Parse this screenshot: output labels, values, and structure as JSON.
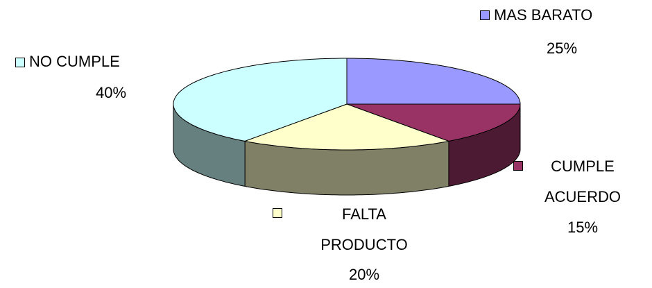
{
  "chart_data": {
    "type": "pie3d",
    "categories": [
      "MAS BARATO",
      "CUMPLE ACUERDO",
      "FALTA PRODUCTO",
      "NO CUMPLE"
    ],
    "values": [
      25,
      15,
      20,
      40
    ],
    "value_labels": [
      "25%",
      "15%",
      "20%",
      "40%"
    ],
    "colors": [
      "#9999ff",
      "#993366",
      "#ffffcc",
      "#ccffff"
    ],
    "side_colors": [
      "#4d4d80",
      "#4d1a33",
      "#808066",
      "#668080"
    ]
  }
}
